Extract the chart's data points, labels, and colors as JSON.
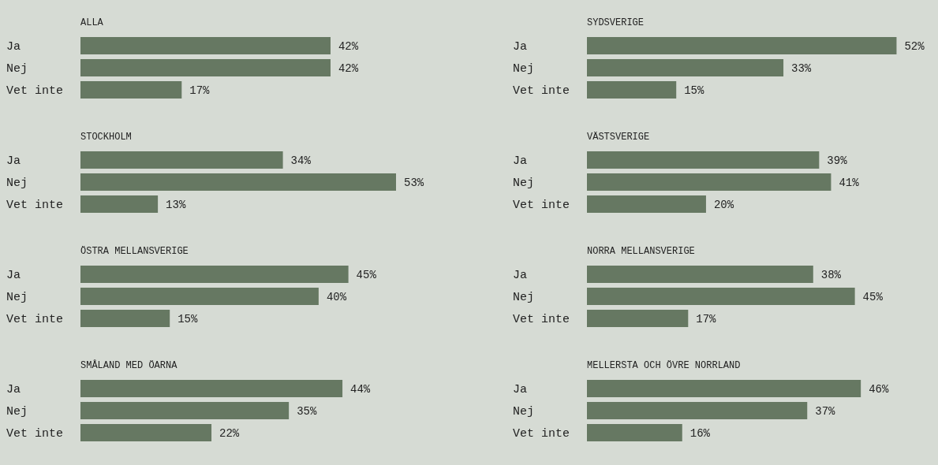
{
  "chart_data": [
    {
      "type": "bar",
      "orientation": "horizontal",
      "title": "ALLA",
      "categories": [
        "Ja",
        "Nej",
        "Vet inte"
      ],
      "values": [
        42,
        42,
        17
      ],
      "value_labels": [
        "42%",
        "42%",
        "17%"
      ],
      "color": "#667862",
      "tick_labels": "y"
    },
    {
      "type": "bar",
      "orientation": "horizontal",
      "title": "SYDSVERIGE",
      "categories": [
        "Ja",
        "Nej",
        "Vet inte"
      ],
      "values": [
        52,
        33,
        15
      ],
      "value_labels": [
        "52%",
        "33%",
        "15%"
      ],
      "color": "#667862",
      "tick_labels": "y"
    },
    {
      "type": "bar",
      "orientation": "horizontal",
      "title": "STOCKHOLM",
      "categories": [
        "Ja",
        "Nej",
        "Vet inte"
      ],
      "values": [
        34,
        53,
        13
      ],
      "value_labels": [
        "34%",
        "53%",
        "13%"
      ],
      "color": "#667862",
      "tick_labels": "y"
    },
    {
      "type": "bar",
      "orientation": "horizontal",
      "title": "VÄSTSVERIGE",
      "categories": [
        "Ja",
        "Nej",
        "Vet inte"
      ],
      "values": [
        39,
        41,
        20
      ],
      "value_labels": [
        "39%",
        "41%",
        "20%"
      ],
      "color": "#667862",
      "tick_labels": "y"
    },
    {
      "type": "bar",
      "orientation": "horizontal",
      "title": "ÖSTRA MELLANSVERIGE",
      "categories": [
        "Ja",
        "Nej",
        "Vet inte"
      ],
      "values": [
        45,
        40,
        15
      ],
      "value_labels": [
        "45%",
        "40%",
        "15%"
      ],
      "color": "#667862",
      "tick_labels": "y"
    },
    {
      "type": "bar",
      "orientation": "horizontal",
      "title": "NORRA MELLANSVERIGE",
      "categories": [
        "Ja",
        "Nej",
        "Vet inte"
      ],
      "values": [
        38,
        45,
        17
      ],
      "value_labels": [
        "38%",
        "45%",
        "17%"
      ],
      "color": "#667862",
      "tick_labels": "y"
    },
    {
      "type": "bar",
      "orientation": "horizontal",
      "title": "SMÅLAND MED ÖARNA",
      "categories": [
        "Ja",
        "Nej",
        "Vet inte"
      ],
      "values": [
        44,
        35,
        22
      ],
      "value_labels": [
        "44%",
        "35%",
        "22%"
      ],
      "color": "#667862",
      "tick_labels": "y"
    },
    {
      "type": "bar",
      "orientation": "horizontal",
      "title": "MELLERSTA OCH ÖVRE NORRLAND",
      "categories": [
        "Ja",
        "Nej",
        "Vet inte"
      ],
      "values": [
        46,
        37,
        16
      ],
      "value_labels": [
        "46%",
        "37%",
        "16%"
      ],
      "color": "#667862",
      "tick_labels": "y"
    }
  ]
}
